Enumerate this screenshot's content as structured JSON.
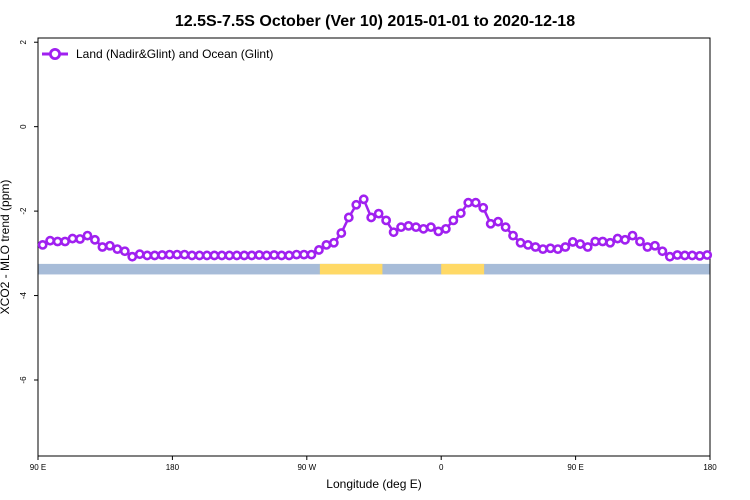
{
  "chart_data": {
    "type": "line",
    "title": "12.5S-7.5S October (Ver 10)   2015-01-01 to 2020-12-18",
    "xlabel": "Longitude (deg E)",
    "ylabel": "XCO2 - MLO trend (ppm)",
    "xlim": [
      90,
      450
    ],
    "ylim": [
      -7.8,
      2.1
    ],
    "x_ticks": [
      {
        "value": 90,
        "label": "90 E"
      },
      {
        "value": 162,
        "label": "180"
      },
      {
        "value": 234,
        "label": "90 W"
      },
      {
        "value": 306,
        "label": "0"
      },
      {
        "value": 378,
        "label": "90 E"
      },
      {
        "value": 450,
        "label": "180"
      }
    ],
    "y_ticks": [
      {
        "value": 2,
        "label": "2"
      },
      {
        "value": 0,
        "label": "0"
      },
      {
        "value": -2,
        "label": "-2"
      },
      {
        "value": -4,
        "label": "-4"
      },
      {
        "value": -6,
        "label": "-6"
      }
    ],
    "grid": false,
    "legend_position": "top-left",
    "series_color": "#a020f0",
    "land_color": "#ffd966",
    "ocean_color": "#a7bcd8",
    "land_band": {
      "y_top": -3.25,
      "y_bottom": -3.5
    },
    "land_spans": [
      [
        241,
        274.5
      ],
      [
        306,
        329
      ]
    ],
    "series": [
      {
        "name": "Land (Nadir&Glint) and Ocean (Glint)",
        "x": [
          92.5,
          96.5,
          100.5,
          104.5,
          108.5,
          112.5,
          116.5,
          120.5,
          124.5,
          128.5,
          132.5,
          136.5,
          140.5,
          144.5,
          148.5,
          152.5,
          156.5,
          160.5,
          164.5,
          168.5,
          172.5,
          176.5,
          180.5,
          184.5,
          188.5,
          192.5,
          196.5,
          200.5,
          204.5,
          208.5,
          212.5,
          216.5,
          220.5,
          224.5,
          228.5,
          232.5,
          236.5,
          240.5,
          244.5,
          248.5,
          252.5,
          256.5,
          260.5,
          264.5,
          268.5,
          272.5,
          276.5,
          280.5,
          284.5,
          288.5,
          292.5,
          296.5,
          300.5,
          304.5,
          308.5,
          312.5,
          316.5,
          320.5,
          324.5,
          328.5,
          332.5,
          336.5,
          340.5,
          344.5,
          348.5,
          352.5,
          356.5,
          360.5,
          364.5,
          368.5,
          372.5,
          376.5,
          380.5,
          384.5,
          388.5,
          392.5,
          396.5,
          400.5,
          404.5,
          408.5,
          412.5,
          416.5,
          420.5,
          424.5,
          428.5,
          432.5,
          436.5,
          440.5,
          444.5,
          448.5
        ],
        "values": [
          -2.8,
          -2.7,
          -2.72,
          -2.72,
          -2.65,
          -2.66,
          -2.58,
          -2.68,
          -2.85,
          -2.82,
          -2.9,
          -2.95,
          -3.08,
          -3.02,
          -3.05,
          -3.05,
          -3.04,
          -3.03,
          -3.03,
          -3.03,
          -3.05,
          -3.05,
          -3.05,
          -3.05,
          -3.05,
          -3.05,
          -3.05,
          -3.05,
          -3.05,
          -3.04,
          -3.05,
          -3.04,
          -3.05,
          -3.05,
          -3.03,
          -3.03,
          -3.03,
          -2.92,
          -2.8,
          -2.75,
          -2.52,
          -2.15,
          -1.85,
          -1.72,
          -2.15,
          -2.06,
          -2.22,
          -2.5,
          -2.38,
          -2.35,
          -2.38,
          -2.42,
          -2.38,
          -2.48,
          -2.42,
          -2.22,
          -2.05,
          -1.8,
          -1.8,
          -1.92,
          -2.3,
          -2.25,
          -2.38,
          -2.58,
          -2.75,
          -2.8,
          -2.85,
          -2.9,
          -2.88,
          -2.9,
          -2.85,
          -2.73,
          -2.78,
          -2.85,
          -2.72,
          -2.72,
          -2.75,
          -2.65,
          -2.68,
          -2.58,
          -2.72,
          -2.85,
          -2.82,
          -2.95,
          -3.08,
          -3.04,
          -3.05,
          -3.05,
          -3.06,
          -3.04
        ]
      }
    ]
  }
}
